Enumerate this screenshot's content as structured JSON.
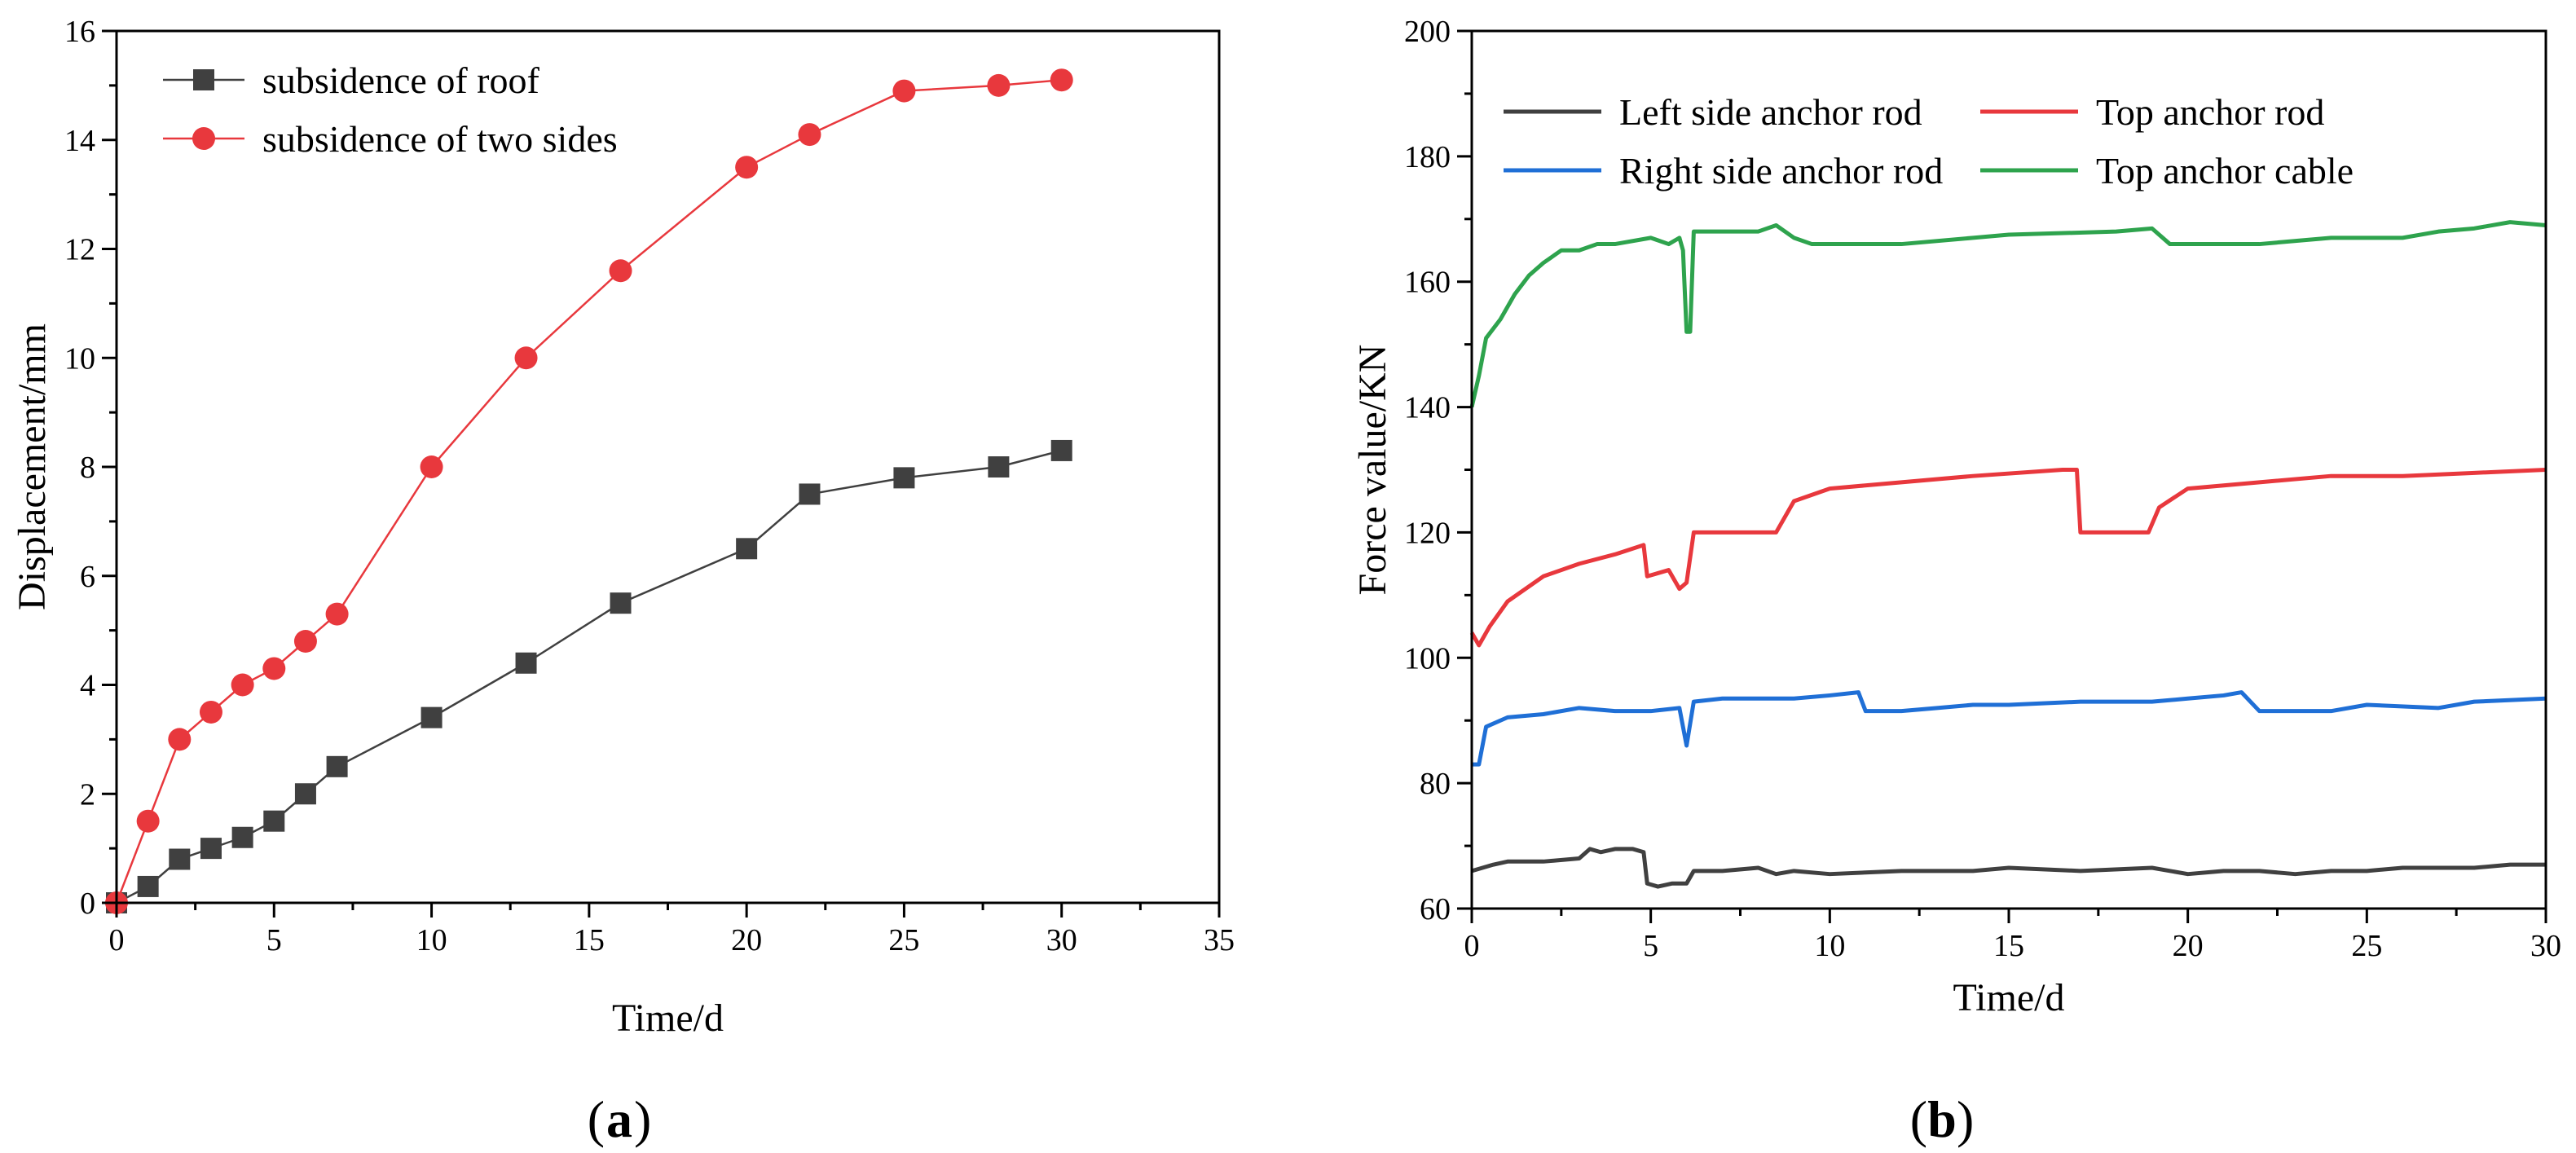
{
  "chart_data": [
    {
      "id": "a",
      "type": "line",
      "panel_label": "a",
      "xlabel": "Time/d",
      "ylabel": "Displacement/mm",
      "xlim": [
        0,
        35
      ],
      "ylim": [
        0,
        16
      ],
      "xticks": [
        0,
        5,
        10,
        15,
        20,
        25,
        30,
        35
      ],
      "yticks": [
        0,
        2,
        4,
        6,
        8,
        10,
        12,
        14,
        16
      ],
      "legend_position": "top-left",
      "grid": false,
      "series": [
        {
          "name": "subsidence of roof",
          "color": "#404040",
          "marker": "square",
          "x": [
            0,
            1,
            2,
            3,
            4,
            5,
            6,
            7,
            10,
            13,
            16,
            20,
            22,
            25,
            28,
            30
          ],
          "values": [
            0,
            0.3,
            0.8,
            1.0,
            1.2,
            1.5,
            2.0,
            2.5,
            3.4,
            4.4,
            5.5,
            6.5,
            7.5,
            7.8,
            8.0,
            8.3
          ]
        },
        {
          "name": "subsidence of two sides",
          "color": "#e8383d",
          "marker": "circle",
          "x": [
            0,
            1,
            2,
            3,
            4,
            5,
            6,
            7,
            10,
            13,
            16,
            20,
            22,
            25,
            28,
            30
          ],
          "values": [
            0,
            1.5,
            3.0,
            3.5,
            4.0,
            4.3,
            4.8,
            5.3,
            8.0,
            10.0,
            11.6,
            13.5,
            14.1,
            14.9,
            15.0,
            15.1
          ]
        }
      ]
    },
    {
      "id": "b",
      "type": "line",
      "panel_label": "b",
      "xlabel": "Time/d",
      "ylabel": "Force value/KN",
      "xlim": [
        0,
        30
      ],
      "ylim": [
        60,
        200
      ],
      "xticks": [
        0,
        5,
        10,
        15,
        20,
        25,
        30
      ],
      "yticks": [
        60,
        80,
        100,
        120,
        140,
        160,
        180,
        200
      ],
      "legend_position": "top",
      "grid": false,
      "series": [
        {
          "name": "Left side anchor rod",
          "color": "#404040",
          "x": [
            0,
            0.3,
            0.6,
            1.0,
            2.0,
            3.0,
            3.3,
            3.6,
            4.0,
            4.5,
            4.8,
            4.9,
            5.2,
            5.6,
            6.0,
            6.2,
            7.0,
            8.0,
            8.5,
            9.0,
            10.0,
            12.0,
            14.0,
            15.0,
            17.0,
            19.0,
            20.0,
            21.0,
            22.0,
            23.0,
            24.0,
            25.0,
            26.0,
            27.0,
            28.0,
            29.0,
            30.0
          ],
          "values": [
            66,
            66.5,
            67,
            67.5,
            67.5,
            68,
            69.5,
            69,
            69.5,
            69.5,
            69,
            64,
            63.5,
            64,
            64,
            66,
            66,
            66.5,
            65.5,
            66,
            65.5,
            66,
            66,
            66.5,
            66,
            66.5,
            65.5,
            66,
            66,
            65.5,
            66,
            66,
            66.5,
            66.5,
            66.5,
            67,
            67
          ]
        },
        {
          "name": "Top anchor rod",
          "color": "#e8383d",
          "x": [
            0,
            0.2,
            0.5,
            1.0,
            2.0,
            3.0,
            4.0,
            4.8,
            4.9,
            5.5,
            5.8,
            6.0,
            6.2,
            8.0,
            8.5,
            9.0,
            10.0,
            12.0,
            14.0,
            16.5,
            16.9,
            17.0,
            18.9,
            19.2,
            20.0,
            22.0,
            24.0,
            26.0,
            28.0,
            30.0
          ],
          "values": [
            104,
            102,
            105,
            109,
            113,
            115,
            116.5,
            118,
            113,
            114,
            111,
            112,
            120,
            120,
            120,
            125,
            127,
            128,
            129,
            130,
            130,
            120,
            120,
            124,
            127,
            128,
            129,
            129,
            129.5,
            130
          ]
        },
        {
          "name": "Right side anchor rod",
          "color": "#1f6fd6",
          "x": [
            0,
            0.2,
            0.4,
            1.0,
            2.0,
            3.0,
            4.0,
            5.0,
            5.8,
            6.0,
            6.2,
            7.0,
            9.0,
            10.0,
            10.8,
            11.0,
            12.0,
            13.0,
            14.0,
            15.0,
            17.0,
            19.0,
            20.0,
            21.0,
            21.5,
            22.0,
            24.0,
            25.0,
            27.0,
            28.0,
            30.0
          ],
          "values": [
            83,
            83,
            89,
            90.5,
            91,
            92,
            91.5,
            91.5,
            92,
            86,
            93,
            93.5,
            93.5,
            94,
            94.5,
            91.5,
            91.5,
            92,
            92.5,
            92.5,
            93,
            93,
            93.5,
            94,
            94.5,
            91.5,
            91.5,
            92.5,
            92,
            93,
            93.5
          ]
        },
        {
          "name": "Top anchor cable",
          "color": "#2ea34d",
          "x": [
            0,
            0.2,
            0.4,
            0.8,
            1.2,
            1.6,
            2.0,
            2.5,
            3.0,
            3.5,
            4.0,
            5.0,
            5.5,
            5.8,
            5.9,
            6.0,
            6.1,
            6.2,
            7.0,
            8.0,
            8.5,
            9.0,
            9.5,
            10.0,
            12.0,
            14.0,
            15.0,
            18.0,
            19.0,
            19.5,
            20.0,
            22.0,
            24.0,
            26.0,
            27.0,
            28.0,
            29.0,
            30.0
          ],
          "values": [
            140,
            145,
            151,
            154,
            158,
            161,
            163,
            165,
            165,
            166,
            166,
            167,
            166,
            167,
            165,
            152,
            152,
            168,
            168,
            168,
            169,
            167,
            166,
            166,
            166,
            167,
            167.5,
            168,
            168.5,
            166,
            166,
            166,
            167,
            167,
            168,
            168.5,
            169.5,
            169
          ]
        }
      ]
    }
  ]
}
